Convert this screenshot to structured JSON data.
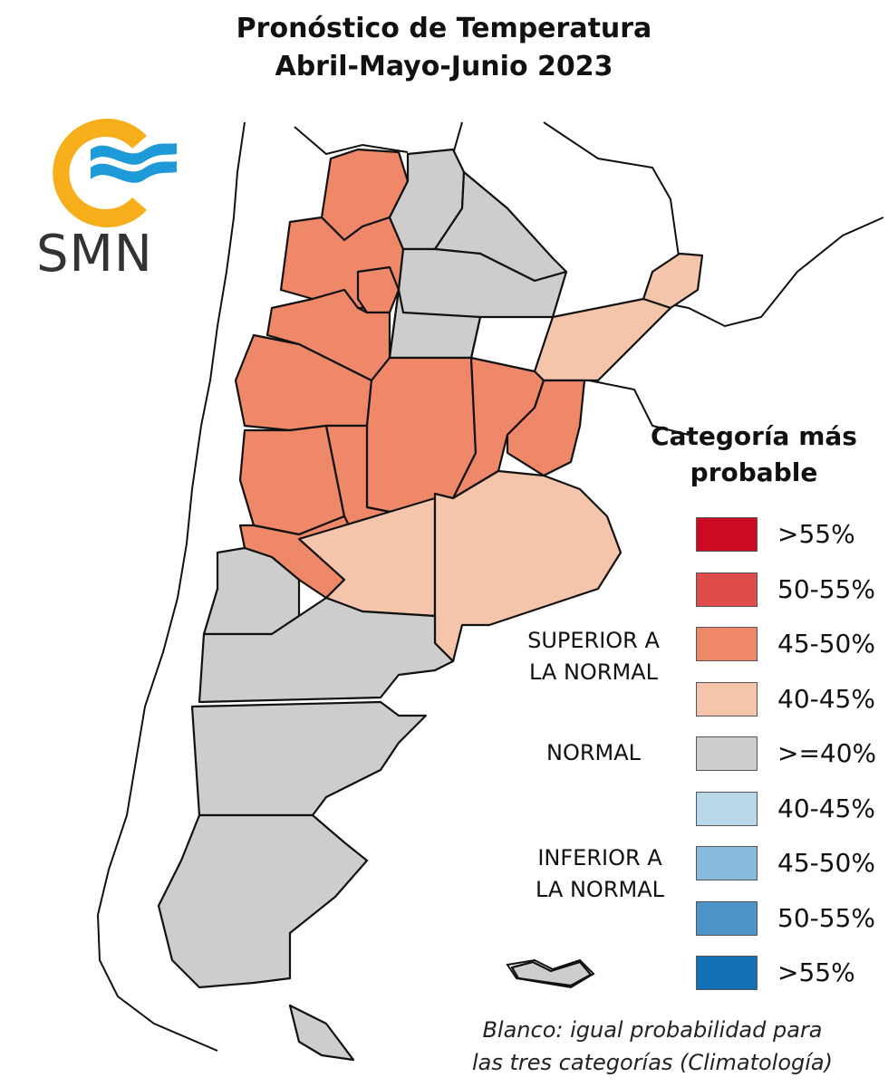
{
  "title": {
    "line1": "Pronóstico de Temperatura",
    "line2": "Abril-Mayo-Junio 2023"
  },
  "logo": {
    "text": "SMN",
    "sun_color": "#f6ae1a",
    "wave_color": "#1f9ad9",
    "icon": "smn-sun-waves-logo"
  },
  "legend": {
    "title_line1": "Categoría más",
    "title_line2": "probable",
    "items": [
      {
        "label": ">55%",
        "color": "#cc0a22"
      },
      {
        "label": "50-55%",
        "color": "#e04b4b"
      },
      {
        "label": "45-50%",
        "color": "#ef8868"
      },
      {
        "label": "40-45%",
        "color": "#f4c5aa"
      },
      {
        "label": ">=40%",
        "color": "#cdcdcd"
      },
      {
        "label": "40-45%",
        "color": "#b9d8ea"
      },
      {
        "label": "45-50%",
        "color": "#87bcdc"
      },
      {
        "label": "50-55%",
        "color": "#4b94c8"
      },
      {
        "label": ">55%",
        "color": "#1270b5"
      }
    ],
    "groups": {
      "superior_line1": "SUPERIOR A",
      "superior_line2": "LA NORMAL",
      "normal": "NORMAL",
      "inferior_line1": "INFERIOR A",
      "inferior_line2": "LA NORMAL"
    }
  },
  "footnote": {
    "line1": "Blanco: igual probabilidad para",
    "line2": "las tres categorías (Climatología)"
  },
  "map": {
    "border_color": "#111111",
    "region_categories": [
      {
        "region": "jujuy",
        "category": "45-50%"
      },
      {
        "region": "salta-west",
        "category": "45-50%"
      },
      {
        "region": "salta-east",
        "category": ">=40%"
      },
      {
        "region": "formosa",
        "category": ">=40%"
      },
      {
        "region": "misiones",
        "category": "40-45%"
      },
      {
        "region": "chaco",
        "category": ">=40%"
      },
      {
        "region": "catamarca",
        "category": "45-50%"
      },
      {
        "region": "tucuman",
        "category": "45-50%"
      },
      {
        "region": "santiago-del-estero",
        "category": ">=40%"
      },
      {
        "region": "corrientes",
        "category": "40-45%"
      },
      {
        "region": "la-rioja",
        "category": "45-50%"
      },
      {
        "region": "santa-fe",
        "category": "45-50%"
      },
      {
        "region": "entre-rios",
        "category": "45-50%"
      },
      {
        "region": "san-juan",
        "category": "45-50%"
      },
      {
        "region": "cordoba",
        "category": "45-50%"
      },
      {
        "region": "san-luis",
        "category": "45-50%"
      },
      {
        "region": "mendoza",
        "category": "45-50%"
      },
      {
        "region": "la-pampa",
        "category": "40-45%"
      },
      {
        "region": "buenos-aires",
        "category": "40-45%"
      },
      {
        "region": "neuquen",
        "category": ">=40%"
      },
      {
        "region": "rio-negro",
        "category": ">=40%"
      },
      {
        "region": "chubut",
        "category": ">=40%"
      },
      {
        "region": "santa-cruz",
        "category": ">=40%"
      },
      {
        "region": "tierra-del-fuego",
        "category": ">=40%"
      },
      {
        "region": "malvinas",
        "category": ">=40%"
      }
    ]
  }
}
